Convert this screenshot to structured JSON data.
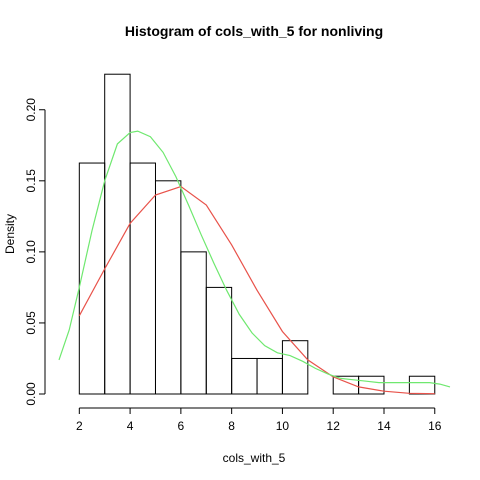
{
  "chart_data": {
    "type": "bar",
    "title": "Histogram of cols_with_5 for nonliving",
    "xlabel": "cols_with_5",
    "ylabel": "Density",
    "xlim": [
      1.2,
      16.6
    ],
    "ylim": [
      0,
      0.235
    ],
    "x_ticks": [
      2,
      4,
      6,
      8,
      10,
      12,
      14,
      16
    ],
    "y_ticks": [
      0.0,
      0.05,
      0.1,
      0.15,
      0.2
    ],
    "y_tick_labels": [
      "0.00",
      "0.05",
      "0.10",
      "0.15",
      "0.20"
    ],
    "grid": false,
    "bins": [
      {
        "x0": 2,
        "x1": 3,
        "density": 0.1625
      },
      {
        "x0": 3,
        "x1": 4,
        "density": 0.225
      },
      {
        "x0": 4,
        "x1": 5,
        "density": 0.1625
      },
      {
        "x0": 5,
        "x1": 6,
        "density": 0.15
      },
      {
        "x0": 6,
        "x1": 7,
        "density": 0.1
      },
      {
        "x0": 7,
        "x1": 8,
        "density": 0.075
      },
      {
        "x0": 8,
        "x1": 9,
        "density": 0.025
      },
      {
        "x0": 9,
        "x1": 10,
        "density": 0.025
      },
      {
        "x0": 10,
        "x1": 11,
        "density": 0.0375
      },
      {
        "x0": 11,
        "x1": 12,
        "density": 0.0
      },
      {
        "x0": 12,
        "x1": 13,
        "density": 0.0125
      },
      {
        "x0": 13,
        "x1": 14,
        "density": 0.0125
      },
      {
        "x0": 14,
        "x1": 15,
        "density": 0.0
      },
      {
        "x0": 15,
        "x1": 16,
        "density": 0.0125
      }
    ],
    "series": [
      {
        "color": "#e8524a",
        "points": [
          [
            2,
            0.055
          ],
          [
            3,
            0.088
          ],
          [
            4,
            0.12
          ],
          [
            5,
            0.14
          ],
          [
            6,
            0.146
          ],
          [
            7,
            0.133
          ],
          [
            8,
            0.105
          ],
          [
            9,
            0.073
          ],
          [
            10,
            0.044
          ],
          [
            11,
            0.024
          ],
          [
            12,
            0.012
          ],
          [
            13,
            0.005
          ],
          [
            14,
            0.002
          ],
          [
            15,
            0.0005
          ],
          [
            16,
            0.0002
          ]
        ]
      },
      {
        "color": "#6fe86f",
        "points": [
          [
            1.2,
            0.024
          ],
          [
            1.6,
            0.045
          ],
          [
            2,
            0.075
          ],
          [
            2.5,
            0.115
          ],
          [
            3,
            0.15
          ],
          [
            3.5,
            0.176
          ],
          [
            4,
            0.184
          ],
          [
            4.3,
            0.185
          ],
          [
            4.8,
            0.181
          ],
          [
            5.3,
            0.17
          ],
          [
            5.8,
            0.153
          ],
          [
            6.3,
            0.133
          ],
          [
            6.8,
            0.112
          ],
          [
            7.3,
            0.092
          ],
          [
            7.8,
            0.073
          ],
          [
            8.3,
            0.056
          ],
          [
            8.8,
            0.043
          ],
          [
            9.3,
            0.034
          ],
          [
            9.8,
            0.029
          ],
          [
            10.3,
            0.027
          ],
          [
            10.8,
            0.023
          ],
          [
            11.3,
            0.018
          ],
          [
            11.8,
            0.014
          ],
          [
            12.3,
            0.011
          ],
          [
            12.8,
            0.01
          ],
          [
            13.3,
            0.009
          ],
          [
            13.8,
            0.008
          ],
          [
            14.3,
            0.008
          ],
          [
            14.8,
            0.008
          ],
          [
            15.3,
            0.008
          ],
          [
            15.8,
            0.008
          ],
          [
            16.2,
            0.007
          ],
          [
            16.6,
            0.005
          ]
        ]
      }
    ]
  }
}
